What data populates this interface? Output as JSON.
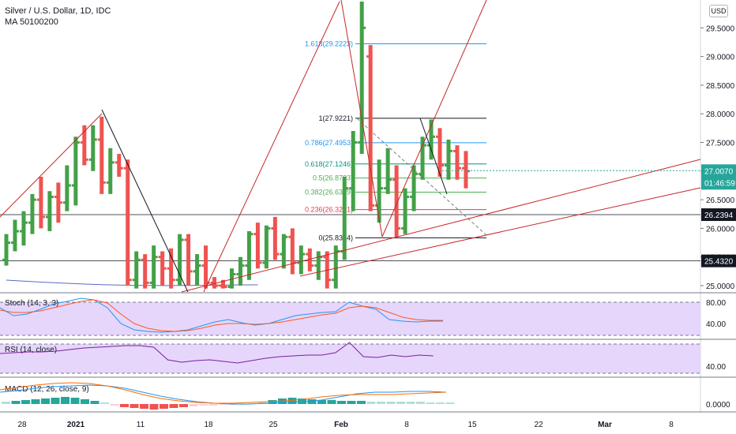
{
  "header": {
    "symbol": "Silver / U.S. Dollar, 1D, IDC",
    "indicator": "MA 50100200",
    "currency_button": "USD"
  },
  "price_axis": {
    "ticks": [
      "29.5000",
      "29.0000",
      "28.5000",
      "28.0000",
      "27.5000",
      "27.0000",
      "26.5000",
      "26.0000",
      "25.5000",
      "25.0000"
    ],
    "last_price_label": "27.0070",
    "countdown_label": "01:46:59",
    "level_labels": [
      "26.2394",
      "25.4320"
    ]
  },
  "time_axis": {
    "ticks": [
      "28",
      "2021",
      "11",
      "18",
      "25",
      "Feb",
      "8",
      "15",
      "22",
      "Mar",
      "8"
    ]
  },
  "fib": {
    "labels": [
      {
        "text": "1.618(29.2223)",
        "level": "1.618",
        "color": "#2196f3"
      },
      {
        "text": "1(27.9221)",
        "level": "1",
        "color": "#131722"
      },
      {
        "text": "0.786(27.4953)",
        "level": "0.786",
        "color": "#2196f3"
      },
      {
        "text": "0.618(27.1246)",
        "level": "0.618",
        "color": "#009688"
      },
      {
        "text": "0.5(26.8783)",
        "level": "0.5",
        "color": "#4caf50"
      },
      {
        "text": "0.382(26.6319)",
        "level": "0.382",
        "color": "#4caf50"
      },
      {
        "text": "0.236(26.3271)",
        "level": "0.236",
        "color": "#f23645"
      },
      {
        "text": "0(25.8344)",
        "level": "0",
        "color": "#131722"
      }
    ]
  },
  "panels": {
    "stoch": {
      "label": "Stoch (14, 3, 3)",
      "ticks": [
        "80.00",
        "40.00"
      ]
    },
    "rsi": {
      "label": "RSI (14, close)",
      "ticks": [
        "40.00"
      ]
    },
    "macd": {
      "label": "MACD (12, 26, close, 9)",
      "ticks": [
        "0.0000"
      ]
    }
  },
  "colors": {
    "up": "#43a047",
    "down": "#ef5350",
    "last_price_bg": "#26a69a",
    "level_bg": "#131722",
    "stoch_k": "#2196f3",
    "stoch_d": "#ff5722",
    "rsi": "#7b1fa2",
    "panel_fill": "#e6d6fb"
  },
  "chart_data": {
    "type": "ohlc",
    "ylim": [
      24.95,
      29.95
    ],
    "last_price": 27.007,
    "horizontal_levels": [
      26.2394,
      25.432
    ],
    "candles": [
      {
        "o": 25.45,
        "h": 25.9,
        "l": 25.35,
        "c": 25.75
      },
      {
        "o": 25.75,
        "h": 26.15,
        "l": 25.6,
        "c": 25.95
      },
      {
        "o": 25.95,
        "h": 26.3,
        "l": 25.7,
        "c": 26.1
      },
      {
        "o": 26.1,
        "h": 26.6,
        "l": 25.9,
        "c": 26.5
      },
      {
        "o": 26.5,
        "h": 26.9,
        "l": 26.0,
        "c": 26.2
      },
      {
        "o": 26.2,
        "h": 26.65,
        "l": 25.95,
        "c": 26.55
      },
      {
        "o": 26.55,
        "h": 26.8,
        "l": 26.1,
        "c": 26.45
      },
      {
        "o": 26.45,
        "h": 27.1,
        "l": 26.3,
        "c": 26.75
      },
      {
        "o": 26.75,
        "h": 27.6,
        "l": 26.4,
        "c": 27.5
      },
      {
        "o": 27.5,
        "h": 27.8,
        "l": 27.1,
        "c": 27.2
      },
      {
        "o": 27.2,
        "h": 27.8,
        "l": 27.0,
        "c": 27.55
      },
      {
        "o": 27.55,
        "h": 27.95,
        "l": 26.6,
        "c": 26.8
      },
      {
        "o": 26.8,
        "h": 27.4,
        "l": 26.6,
        "c": 27.15
      },
      {
        "o": 27.15,
        "h": 27.3,
        "l": 26.9,
        "c": 27.05
      },
      {
        "o": 27.05,
        "h": 27.2,
        "l": 25.0,
        "c": 25.1
      },
      {
        "o": 25.1,
        "h": 25.6,
        "l": 24.95,
        "c": 25.45
      },
      {
        "o": 25.45,
        "h": 25.55,
        "l": 24.95,
        "c": 25.05
      },
      {
        "o": 25.05,
        "h": 25.7,
        "l": 24.95,
        "c": 25.5
      },
      {
        "o": 25.5,
        "h": 25.6,
        "l": 25.0,
        "c": 25.3
      },
      {
        "o": 25.3,
        "h": 25.65,
        "l": 24.95,
        "c": 25.1
      },
      {
        "o": 25.1,
        "h": 25.9,
        "l": 25.0,
        "c": 25.8
      },
      {
        "o": 25.8,
        "h": 25.9,
        "l": 25.0,
        "c": 25.25
      },
      {
        "o": 25.25,
        "h": 25.55,
        "l": 25.0,
        "c": 25.35
      },
      {
        "o": 25.35,
        "h": 25.7,
        "l": 24.95,
        "c": 25.05
      },
      {
        "o": 25.05,
        "h": 25.15,
        "l": 24.95,
        "c": 25.0
      },
      {
        "o": 25.0,
        "h": 25.1,
        "l": 24.95,
        "c": 24.98
      },
      {
        "o": 24.98,
        "h": 25.3,
        "l": 24.95,
        "c": 25.2
      },
      {
        "o": 25.2,
        "h": 25.5,
        "l": 25.0,
        "c": 25.35
      },
      {
        "o": 25.35,
        "h": 25.95,
        "l": 25.1,
        "c": 25.9
      },
      {
        "o": 25.9,
        "h": 26.1,
        "l": 25.3,
        "c": 25.4
      },
      {
        "o": 25.4,
        "h": 26.05,
        "l": 25.3,
        "c": 26.0
      },
      {
        "o": 26.0,
        "h": 26.2,
        "l": 25.45,
        "c": 25.55
      },
      {
        "o": 25.55,
        "h": 25.9,
        "l": 25.3,
        "c": 25.85
      },
      {
        "o": 25.85,
        "h": 26.0,
        "l": 25.2,
        "c": 25.4
      },
      {
        "o": 25.4,
        "h": 25.7,
        "l": 25.2,
        "c": 25.55
      },
      {
        "o": 25.55,
        "h": 25.65,
        "l": 25.25,
        "c": 25.35
      },
      {
        "o": 25.35,
        "h": 25.6,
        "l": 25.1,
        "c": 25.5
      },
      {
        "o": 25.5,
        "h": 25.6,
        "l": 24.95,
        "c": 25.1
      },
      {
        "o": 25.1,
        "h": 25.7,
        "l": 24.95,
        "c": 25.6
      },
      {
        "o": 25.6,
        "h": 26.9,
        "l": 25.45,
        "c": 26.7
      },
      {
        "o": 26.7,
        "h": 27.7,
        "l": 26.3,
        "c": 27.5
      },
      {
        "o": 27.5,
        "h": 30.0,
        "l": 27.3,
        "c": 29.5
      },
      {
        "o": 29.0,
        "h": 29.2,
        "l": 26.3,
        "c": 26.4
      },
      {
        "o": 26.4,
        "h": 27.2,
        "l": 26.1,
        "c": 26.7
      },
      {
        "o": 26.7,
        "h": 27.4,
        "l": 26.6,
        "c": 26.85
      },
      {
        "o": 26.85,
        "h": 27.1,
        "l": 25.85,
        "c": 26.0
      },
      {
        "o": 26.0,
        "h": 26.7,
        "l": 25.9,
        "c": 26.55
      },
      {
        "o": 26.55,
        "h": 27.1,
        "l": 26.3,
        "c": 26.95
      },
      {
        "o": 26.95,
        "h": 27.6,
        "l": 26.85,
        "c": 27.45
      },
      {
        "o": 27.45,
        "h": 27.9,
        "l": 27.2,
        "c": 27.6
      },
      {
        "o": 27.6,
        "h": 27.75,
        "l": 26.9,
        "c": 27.1
      },
      {
        "o": 27.1,
        "h": 27.55,
        "l": 26.85,
        "c": 27.35
      },
      {
        "o": 27.35,
        "h": 27.45,
        "l": 26.85,
        "c": 27.05
      },
      {
        "o": 27.05,
        "h": 27.35,
        "l": 26.7,
        "c": 27.0
      }
    ]
  }
}
